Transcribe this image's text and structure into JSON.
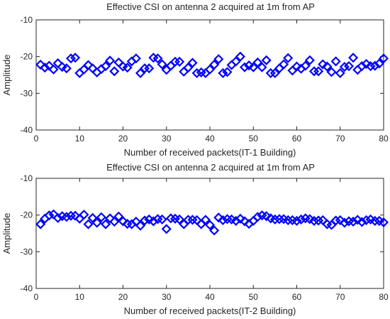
{
  "chart_data": [
    {
      "type": "scatter",
      "title": "Effective CSI on antenna 2 acquired at 1m from AP",
      "xlabel": "Number of received packets(IT-1 Building)",
      "ylabel": "Amplitude",
      "xlim": [
        0,
        80
      ],
      "ylim": [
        -40,
        -10
      ],
      "xticks": [
        0,
        10,
        20,
        30,
        40,
        50,
        60,
        70,
        80
      ],
      "yticks": [
        -10,
        -20,
        -30,
        -40
      ],
      "marker": "diamond",
      "color": "#0000ff",
      "grid": false,
      "x": [
        1,
        2,
        3,
        4,
        5,
        6,
        7,
        8,
        9,
        10,
        11,
        12,
        13,
        14,
        15,
        16,
        17,
        18,
        19,
        20,
        21,
        22,
        23,
        24,
        25,
        26,
        27,
        28,
        29,
        30,
        31,
        32,
        33,
        34,
        35,
        36,
        37,
        38,
        39,
        40,
        41,
        42,
        43,
        44,
        45,
        46,
        47,
        48,
        49,
        50,
        51,
        52,
        53,
        54,
        55,
        56,
        57,
        58,
        59,
        60,
        61,
        62,
        63,
        64,
        65,
        66,
        67,
        68,
        69,
        70,
        71,
        72,
        73,
        74,
        75,
        76,
        77,
        78,
        79,
        80
      ],
      "y": [
        -22.2,
        -23,
        -22.5,
        -23.5,
        -21.8,
        -22.8,
        -23.2,
        -20.5,
        -20.3,
        -24.5,
        -23.5,
        -22.3,
        -23.2,
        -24.3,
        -23.4,
        -22.6,
        -21.1,
        -24,
        -21.6,
        -22.7,
        -23,
        -21.3,
        -20.5,
        -24.5,
        -23.2,
        -23.2,
        -20.3,
        -20.5,
        -22.1,
        -23.6,
        -22.5,
        -21.4,
        -21.4,
        -24.1,
        -23,
        -21.7,
        -24.5,
        -24.3,
        -24.5,
        -23.5,
        -22.2,
        -20.7,
        -24.5,
        -24.2,
        -22.3,
        -21.3,
        -20,
        -22.9,
        -22.4,
        -22.9,
        -21.6,
        -22.9,
        -21,
        -24.5,
        -24.5,
        -23.2,
        -22.1,
        -20.4,
        -23.8,
        -22.7,
        -23.3,
        -22.5,
        -21,
        -24,
        -24,
        -22.1,
        -22.7,
        -24.2,
        -21.3,
        -24.5,
        -22.8,
        -22.6,
        -20.3,
        -23.6,
        -22.6,
        -22,
        -22.6,
        -22.5,
        -21.9,
        -20.5
      ]
    },
    {
      "type": "scatter",
      "title": "Effective CSI on antenna 2 acquired at 1m from AP",
      "xlabel": "Number of received packets(IT-2 Building)",
      "ylabel": "Amplitude",
      "xlim": [
        0,
        80
      ],
      "ylim": [
        -40,
        -10
      ],
      "xticks": [
        0,
        10,
        20,
        30,
        40,
        50,
        60,
        70,
        80
      ],
      "yticks": [
        -10,
        -20,
        -30,
        -40
      ],
      "marker": "diamond",
      "color": "#0000ff",
      "grid": false,
      "x": [
        1,
        2,
        3,
        4,
        5,
        6,
        7,
        8,
        9,
        10,
        11,
        12,
        13,
        14,
        15,
        16,
        17,
        18,
        19,
        20,
        21,
        22,
        23,
        24,
        25,
        26,
        27,
        28,
        29,
        30,
        31,
        32,
        33,
        34,
        35,
        36,
        37,
        38,
        39,
        40,
        41,
        42,
        43,
        44,
        45,
        46,
        47,
        48,
        49,
        50,
        51,
        52,
        53,
        54,
        55,
        56,
        57,
        58,
        59,
        60,
        61,
        62,
        63,
        64,
        65,
        66,
        67,
        68,
        69,
        70,
        71,
        72,
        73,
        74,
        75,
        76,
        77,
        78,
        79,
        80
      ],
      "y": [
        -22.5,
        -21,
        -20.1,
        -19.8,
        -20.8,
        -20.3,
        -20.5,
        -20.2,
        -20.2,
        -21,
        -19.9,
        -22.5,
        -20.8,
        -22.1,
        -20.6,
        -22.5,
        -20.9,
        -21.8,
        -20.4,
        -21.7,
        -22.4,
        -22.5,
        -21.8,
        -22.9,
        -21.5,
        -21.2,
        -21.7,
        -21.1,
        -21.2,
        -23.8,
        -20.9,
        -21,
        -21.2,
        -22.5,
        -21.3,
        -21.3,
        -21.4,
        -22.5,
        -21.3,
        -22.7,
        -24.2,
        -20.7,
        -21.4,
        -21.1,
        -21.2,
        -21.6,
        -21,
        -21.7,
        -22.4,
        -21.6,
        -20.5,
        -20.1,
        -20.3,
        -20.9,
        -21.2,
        -21.1,
        -21.1,
        -21.4,
        -21.4,
        -21.6,
        -21.2,
        -20.9,
        -21.1,
        -21.6,
        -21.5,
        -21.4,
        -22.5,
        -22.7,
        -21.5,
        -21.4,
        -22.1,
        -21.7,
        -21.8,
        -21.3,
        -21.9,
        -21.4,
        -21.2,
        -21.6,
        -21.6,
        -22
      ]
    }
  ]
}
